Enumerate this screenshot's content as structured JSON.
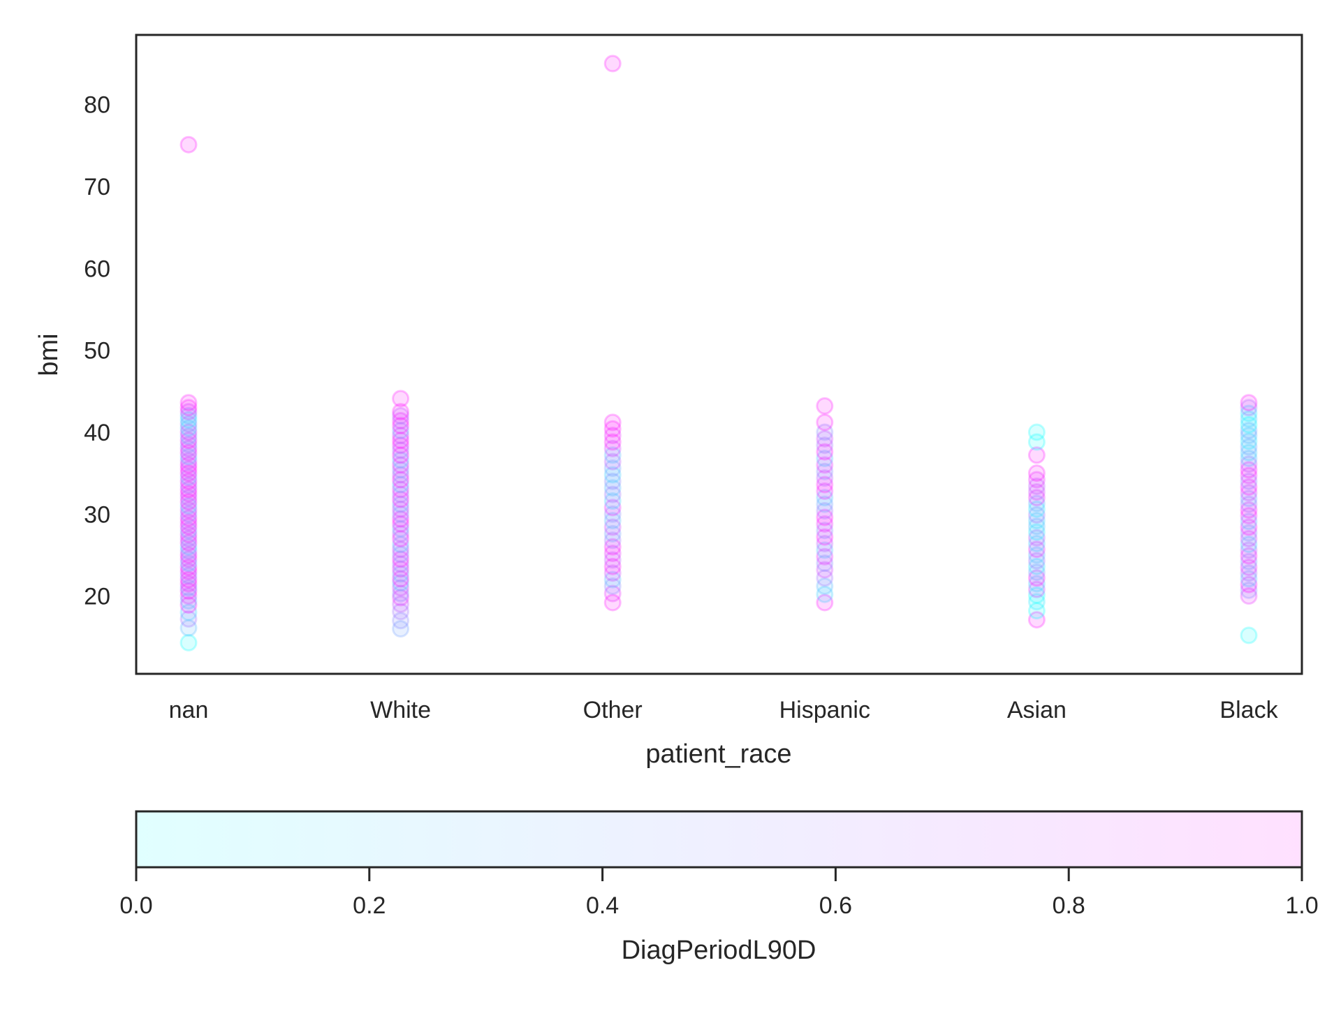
{
  "chart_data": {
    "type": "scatter",
    "title": "",
    "xlabel": "patient_race",
    "ylabel": "bmi",
    "categories": [
      "nan",
      "White",
      "Other",
      "Hispanic",
      "Asian",
      "Black"
    ],
    "ylim": [
      10.5,
      88.5
    ],
    "yticks": [
      20,
      30,
      40,
      50,
      60,
      70,
      80
    ],
    "grid": false,
    "marker_opacity": 0.15,
    "colormap": {
      "name": "cool",
      "start": "#00ffff",
      "end": "#ff00ff"
    },
    "colorbar": {
      "label": "DiagPeriodL90D",
      "range": [
        0,
        1
      ],
      "ticks": [
        "0.0",
        "0.2",
        "0.4",
        "0.6",
        "0.8",
        "1.0"
      ],
      "placement": "bottom"
    },
    "series": [
      {
        "category": "nan",
        "points": [
          [
            14.3,
            0
          ],
          [
            16.1,
            0.3
          ],
          [
            17.2,
            0.6
          ],
          [
            18.0,
            0.2
          ],
          [
            18.9,
            1
          ],
          [
            19.4,
            0.3
          ],
          [
            20.0,
            0.8
          ],
          [
            20.6,
            1
          ],
          [
            21.0,
            0.4
          ],
          [
            21.5,
            0.9
          ],
          [
            22.0,
            1
          ],
          [
            22.5,
            0.5
          ],
          [
            23.0,
            0.9
          ],
          [
            23.5,
            1
          ],
          [
            24.0,
            0.3
          ],
          [
            24.5,
            0.8
          ],
          [
            25.0,
            1
          ],
          [
            25.5,
            0.6
          ],
          [
            26.0,
            0.2
          ],
          [
            26.5,
            1
          ],
          [
            27.0,
            0.7
          ],
          [
            27.5,
            0.9
          ],
          [
            28.0,
            0.4
          ],
          [
            28.5,
            1
          ],
          [
            29.0,
            0.8
          ],
          [
            29.5,
            1
          ],
          [
            30.0,
            0.5
          ],
          [
            30.5,
            0.9
          ],
          [
            31.0,
            0.3
          ],
          [
            31.5,
            1
          ],
          [
            32.0,
            0.7
          ],
          [
            32.5,
            0.9
          ],
          [
            33.0,
            1
          ],
          [
            33.5,
            0.6
          ],
          [
            34.0,
            1
          ],
          [
            34.5,
            0.4
          ],
          [
            35.0,
            1
          ],
          [
            35.5,
            0.9
          ],
          [
            36.0,
            1
          ],
          [
            36.5,
            0.7
          ],
          [
            37.0,
            0.3
          ],
          [
            37.5,
            1
          ],
          [
            38.0,
            0.8
          ],
          [
            38.5,
            0.5
          ],
          [
            39.0,
            1
          ],
          [
            39.5,
            0.4
          ],
          [
            40.0,
            0.9
          ],
          [
            40.5,
            0.2
          ],
          [
            41.0,
            0.6
          ],
          [
            41.5,
            0.1
          ],
          [
            42.0,
            0.3
          ],
          [
            42.5,
            0.8
          ],
          [
            43.0,
            1
          ],
          [
            43.6,
            1
          ],
          [
            75.1,
            1
          ]
        ]
      },
      {
        "category": "White",
        "points": [
          [
            16.0,
            0.4
          ],
          [
            17.0,
            0.5
          ],
          [
            18.1,
            0.6
          ],
          [
            19.0,
            0.7
          ],
          [
            19.8,
            0.9
          ],
          [
            20.3,
            0.5
          ],
          [
            21.0,
            0.8
          ],
          [
            21.6,
            0.3
          ],
          [
            22.1,
            1
          ],
          [
            22.7,
            0.4
          ],
          [
            23.3,
            0.9
          ],
          [
            23.9,
            0.6
          ],
          [
            24.5,
            1
          ],
          [
            25.1,
            0.5
          ],
          [
            25.7,
            0.8
          ],
          [
            26.3,
            0.3
          ],
          [
            27.0,
            1
          ],
          [
            27.6,
            0.7
          ],
          [
            28.2,
            0.4
          ],
          [
            28.8,
            0.9
          ],
          [
            29.4,
            1
          ],
          [
            30.0,
            0.5
          ],
          [
            30.6,
            0.8
          ],
          [
            31.2,
            0.4
          ],
          [
            31.8,
            1
          ],
          [
            32.4,
            0.6
          ],
          [
            33.0,
            0.9
          ],
          [
            33.6,
            0.3
          ],
          [
            34.2,
            1
          ],
          [
            34.8,
            0.7
          ],
          [
            35.4,
            0.5
          ],
          [
            36.0,
            0.9
          ],
          [
            36.6,
            0.3
          ],
          [
            37.2,
            1
          ],
          [
            37.8,
            0.6
          ],
          [
            38.4,
            0.9
          ],
          [
            39.0,
            1
          ],
          [
            39.6,
            0.8
          ],
          [
            40.2,
            0.4
          ],
          [
            40.8,
            1
          ],
          [
            41.4,
            0.9
          ],
          [
            42.0,
            0.7
          ],
          [
            42.5,
            1
          ],
          [
            44.1,
            1
          ]
        ]
      },
      {
        "category": "Other",
        "points": [
          [
            19.2,
            1
          ],
          [
            20.3,
            0.9
          ],
          [
            21.2,
            0.5
          ],
          [
            22.0,
            0.3
          ],
          [
            22.8,
            0.8
          ],
          [
            23.6,
            1
          ],
          [
            24.4,
            0.7
          ],
          [
            25.2,
            0.9
          ],
          [
            26.0,
            1
          ],
          [
            26.8,
            0.6
          ],
          [
            27.6,
            0.4
          ],
          [
            28.4,
            0.8
          ],
          [
            29.2,
            0.3
          ],
          [
            30.0,
            0.5
          ],
          [
            30.8,
            0.9
          ],
          [
            31.6,
            0.2
          ],
          [
            32.4,
            0.6
          ],
          [
            33.2,
            0.3
          ],
          [
            34.0,
            0.5
          ],
          [
            34.8,
            0.2
          ],
          [
            35.6,
            0.4
          ],
          [
            36.4,
            0.7
          ],
          [
            37.2,
            0.3
          ],
          [
            38.0,
            0.8
          ],
          [
            38.8,
            1
          ],
          [
            39.6,
            0.9
          ],
          [
            40.4,
            1
          ],
          [
            41.2,
            1
          ],
          [
            85.0,
            1
          ]
        ]
      },
      {
        "category": "Hispanic",
        "points": [
          [
            19.2,
            1
          ],
          [
            20.2,
            0.2
          ],
          [
            21.2,
            0.3
          ],
          [
            22.2,
            0.6
          ],
          [
            23.2,
            0.8
          ],
          [
            24.0,
            0.5
          ],
          [
            24.8,
            0.9
          ],
          [
            25.6,
            0.3
          ],
          [
            26.4,
            0.7
          ],
          [
            27.2,
            1
          ],
          [
            28.0,
            0.5
          ],
          [
            28.8,
            0.9
          ],
          [
            29.6,
            1
          ],
          [
            30.4,
            0.6
          ],
          [
            31.2,
            0.4
          ],
          [
            32.0,
            0.3
          ],
          [
            32.8,
            0.9
          ],
          [
            33.6,
            1
          ],
          [
            34.4,
            0.7
          ],
          [
            35.2,
            0.5
          ],
          [
            36.0,
            0.9
          ],
          [
            36.8,
            0.3
          ],
          [
            37.6,
            1
          ],
          [
            38.4,
            0.6
          ],
          [
            39.2,
            0.8
          ],
          [
            40.0,
            0.5
          ],
          [
            41.2,
            1
          ],
          [
            43.2,
            1
          ]
        ]
      },
      {
        "category": "Asian",
        "points": [
          [
            17.1,
            1
          ],
          [
            18.2,
            0
          ],
          [
            19.3,
            0.1
          ],
          [
            20.1,
            0
          ],
          [
            20.8,
            0.8
          ],
          [
            21.5,
            0.2
          ],
          [
            22.2,
            1
          ],
          [
            22.9,
            0.4
          ],
          [
            23.6,
            0.1
          ],
          [
            24.3,
            0.6
          ],
          [
            25.0,
            0.3
          ],
          [
            25.7,
            0.9
          ],
          [
            26.4,
            0.2
          ],
          [
            27.1,
            0.7
          ],
          [
            27.8,
            0.1
          ],
          [
            28.5,
            0.3
          ],
          [
            29.2,
            0.2
          ],
          [
            29.9,
            0.6
          ],
          [
            30.6,
            0.1
          ],
          [
            31.3,
            0.3
          ],
          [
            32.0,
            0.9
          ],
          [
            32.7,
            0.8
          ],
          [
            33.4,
            0.7
          ],
          [
            34.2,
            0.9
          ],
          [
            35.0,
            1
          ],
          [
            37.2,
            1
          ],
          [
            38.8,
            0
          ],
          [
            40.0,
            0
          ]
        ]
      },
      {
        "category": "Black",
        "points": [
          [
            15.2,
            0
          ],
          [
            20.0,
            0.9
          ],
          [
            20.7,
            0.5
          ],
          [
            21.4,
            1
          ],
          [
            22.1,
            0.3
          ],
          [
            22.8,
            0.6
          ],
          [
            23.5,
            0.9
          ],
          [
            24.2,
            0.4
          ],
          [
            24.9,
            1
          ],
          [
            25.6,
            0.7
          ],
          [
            26.3,
            0.2
          ],
          [
            27.0,
            0.8
          ],
          [
            27.7,
            0.5
          ],
          [
            28.4,
            1
          ],
          [
            29.1,
            0.3
          ],
          [
            29.8,
            0.9
          ],
          [
            30.5,
            1
          ],
          [
            31.2,
            0.6
          ],
          [
            31.9,
            0.4
          ],
          [
            32.6,
            0.8
          ],
          [
            33.3,
            1
          ],
          [
            34.0,
            0.5
          ],
          [
            34.7,
            0.9
          ],
          [
            35.4,
            1
          ],
          [
            36.1,
            0.7
          ],
          [
            36.8,
            0.3
          ],
          [
            37.5,
            0.2
          ],
          [
            38.2,
            0.4
          ],
          [
            38.9,
            0.1
          ],
          [
            39.6,
            0.3
          ],
          [
            40.2,
            0.4
          ],
          [
            40.9,
            0
          ],
          [
            41.6,
            0.2
          ],
          [
            42.3,
            0.1
          ],
          [
            43.0,
            0.6
          ],
          [
            43.6,
            1
          ]
        ]
      }
    ]
  }
}
